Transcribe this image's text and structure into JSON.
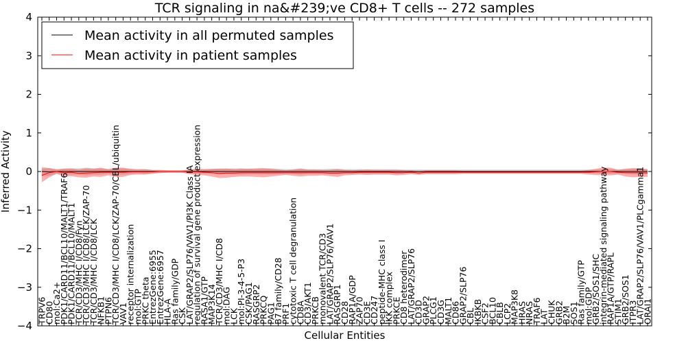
{
  "chart_data": {
    "type": "line",
    "title": "TCR signaling in na&#239;ve CD8+ T cells -- 272 samples",
    "xlabel": "Cellular Entities",
    "ylabel": "Inferred Activity",
    "ylim": [
      -4,
      4
    ],
    "yticks": [
      -4,
      -3,
      -2,
      -1,
      0,
      1,
      2,
      3,
      4
    ],
    "ytick_labels": [
      "−4",
      "−3",
      "−2",
      "−1",
      "0",
      "1",
      "2",
      "3",
      "4"
    ],
    "legend": {
      "placement": "top-left",
      "entries": [
        {
          "label": "Mean activity in all permuted samples",
          "color": "#000000"
        },
        {
          "label": "Mean activity in patient samples",
          "color": "#ff0000"
        }
      ]
    },
    "categories": [
      "TRPV6",
      "CD80",
      "mol:Ca2+",
      "PDK1/CARD11/BCL10/MALT1/TRAF6",
      "PDK1/CARD11/BCL10/MALT1",
      "TCR/CD3/MHC I/CD8/Fyn",
      "TCR/CD3/MHC I/CD8/LCK/ZAP-70",
      "TCR/CD3/MHC I/CD8/LCK",
      "NFKB1",
      "PTPN6",
      "TCR/CD3/MHC I/CD8/LCK/ZAP-70/CBL/ubiquitin",
      "VAV1",
      "receptor internalization",
      "mol:GTP",
      "PRKC theta",
      "EntrezGene:6955",
      "EntrezGene:6957",
      "HLA-A",
      "Ras family/GDP",
      "CSK",
      "LAT/GRAP2/SLP76/VAV1/PI3K Class IA",
      "regulation of survival gene product expression",
      "RASA1/GTP",
      "MAP3K14",
      "TCR/CD3/MHC I/CD8",
      "mol:DAG",
      "LCK",
      "mol:PI-3-4-5-P3",
      "CSK/PAG1",
      "RASGRP2",
      "PRKCQ",
      "PAG1",
      "B7 family/CD28",
      "PRF1",
      "cytotoxic T cell degranulation",
      "CD8A",
      "CD3/AKT1",
      "PRKCB",
      "monovalent TCR/CD3",
      "LAT/GRAP2/SLP76/VAV1",
      "RASGRP1",
      "CD28",
      "RAP1A/GDP",
      "ZAP70",
      "CD3E",
      "CD247",
      "peptide-MHC class I",
      "IKK complex",
      "PRKCE",
      "CD8 heterodimer",
      "LAT/GRAP2/SLP76",
      "CD3D",
      "GRAP2",
      "PLCG1",
      "CD3G",
      "MALT1",
      "CD86",
      "GRAP2/SLP76",
      "CBL",
      "IKBKB",
      "CSF2",
      "BCL10",
      "CBLB",
      "LCP2",
      "MAP3K8",
      "HRAS",
      "NRAS",
      "TRAF6",
      "LAT",
      "CHUK",
      "GRB2",
      "B2M",
      "SOS1",
      "Ras family/GTP",
      "mol:GDP",
      "GRB2/SOS1/SHC",
      "integrin-mediated signaling pathway",
      "RAP1A/GTP/RAPL",
      "STIM1",
      "GRB2/SOS1",
      "ITPR3",
      "LAT/GRAP2/SLP76/VAV1/PLCgamma1",
      "ORAI1"
    ],
    "series": [
      {
        "name": "Mean activity in all permuted samples",
        "color": "#000000",
        "values": [
          0.0,
          -0.01,
          0.0,
          0.0,
          0.0,
          0.0,
          0.0,
          0.0,
          0.0,
          0.0,
          0.0,
          0.0,
          0.0,
          0.0,
          0.0,
          0.0,
          0.0,
          0.0,
          0.0,
          0.0,
          0.0,
          0.0,
          0.0,
          0.0,
          0.0,
          0.0,
          0.0,
          0.0,
          0.0,
          0.0,
          0.0,
          0.0,
          0.0,
          0.0,
          0.0,
          0.0,
          0.0,
          0.0,
          0.0,
          0.0,
          0.0,
          0.0,
          0.0,
          0.0,
          0.0,
          0.0,
          0.0,
          0.0,
          0.0,
          0.0,
          0.0,
          0.0,
          0.0,
          0.0,
          0.0,
          0.0,
          0.0,
          0.0,
          0.0,
          0.0,
          0.0,
          0.0,
          0.0,
          0.0,
          0.0,
          0.0,
          0.0,
          0.0,
          0.0,
          0.0,
          0.0,
          0.0,
          0.0,
          0.0,
          0.0,
          0.0,
          0.0,
          0.0,
          0.0,
          0.0,
          0.0,
          0.0,
          0.0
        ],
        "band": [
          0.12,
          0.1,
          0.05,
          0.08,
          0.08,
          0.08,
          0.1,
          0.08,
          0.08,
          0.06,
          0.08,
          0.08,
          0.06,
          0.05,
          0.06,
          0.04,
          0.04,
          0.03,
          0.03,
          0.03,
          0.05,
          0.06,
          0.06,
          0.06,
          0.08,
          0.07,
          0.08,
          0.08,
          0.07,
          0.07,
          0.07,
          0.08,
          0.07,
          0.06,
          0.06,
          0.08,
          0.06,
          0.06,
          0.06,
          0.07,
          0.07,
          0.06,
          0.06,
          0.06,
          0.06,
          0.06,
          0.06,
          0.06,
          0.06,
          0.05,
          0.05,
          0.05,
          0.05,
          0.05,
          0.05,
          0.05,
          0.05,
          0.05,
          0.05,
          0.05,
          0.05,
          0.05,
          0.05,
          0.05,
          0.05,
          0.05,
          0.05,
          0.05,
          0.05,
          0.05,
          0.05,
          0.05,
          0.05,
          0.05,
          0.05,
          0.05,
          0.06,
          0.06,
          0.06,
          0.06,
          0.07,
          0.07,
          0.06
        ]
      },
      {
        "name": "Mean activity in patient samples",
        "color": "#ff0000",
        "values": [
          -0.1,
          -0.03,
          0.0,
          -0.03,
          -0.02,
          -0.05,
          -0.04,
          -0.03,
          -0.02,
          -0.02,
          -0.02,
          -0.02,
          -0.01,
          -0.01,
          -0.01,
          -0.01,
          0.0,
          0.0,
          0.0,
          0.0,
          -0.01,
          -0.01,
          -0.02,
          -0.03,
          -0.05,
          -0.04,
          -0.04,
          -0.03,
          -0.03,
          -0.03,
          -0.03,
          -0.03,
          -0.03,
          -0.03,
          -0.03,
          -0.03,
          -0.03,
          -0.03,
          -0.03,
          -0.04,
          -0.04,
          -0.03,
          -0.03,
          -0.02,
          -0.02,
          -0.02,
          -0.02,
          -0.02,
          -0.03,
          -0.03,
          -0.02,
          -0.04,
          -0.02,
          -0.02,
          -0.02,
          -0.02,
          -0.02,
          -0.02,
          -0.02,
          -0.02,
          -0.02,
          -0.02,
          -0.02,
          -0.02,
          -0.02,
          -0.02,
          -0.02,
          -0.02,
          -0.02,
          -0.02,
          -0.02,
          -0.02,
          -0.02,
          -0.02,
          -0.02,
          -0.01,
          0.0,
          0.0,
          -0.02,
          -0.03,
          -0.03,
          -0.03,
          -0.04
        ],
        "band": [
          0.18,
          0.12,
          0.06,
          0.1,
          0.1,
          0.1,
          0.12,
          0.1,
          0.12,
          0.08,
          0.12,
          0.12,
          0.08,
          0.07,
          0.07,
          0.05,
          0.04,
          0.03,
          0.03,
          0.03,
          0.06,
          0.08,
          0.08,
          0.1,
          0.12,
          0.12,
          0.1,
          0.1,
          0.1,
          0.11,
          0.12,
          0.1,
          0.08,
          0.06,
          0.08,
          0.1,
          0.08,
          0.08,
          0.07,
          0.08,
          0.1,
          0.07,
          0.06,
          0.06,
          0.07,
          0.06,
          0.06,
          0.06,
          0.07,
          0.06,
          0.05,
          0.05,
          0.05,
          0.05,
          0.05,
          0.05,
          0.05,
          0.04,
          0.04,
          0.04,
          0.04,
          0.04,
          0.04,
          0.04,
          0.04,
          0.04,
          0.04,
          0.04,
          0.04,
          0.04,
          0.04,
          0.04,
          0.04,
          0.04,
          0.06,
          0.08,
          0.1,
          0.1,
          0.06,
          0.1,
          0.12,
          0.11,
          0.1
        ]
      }
    ]
  }
}
